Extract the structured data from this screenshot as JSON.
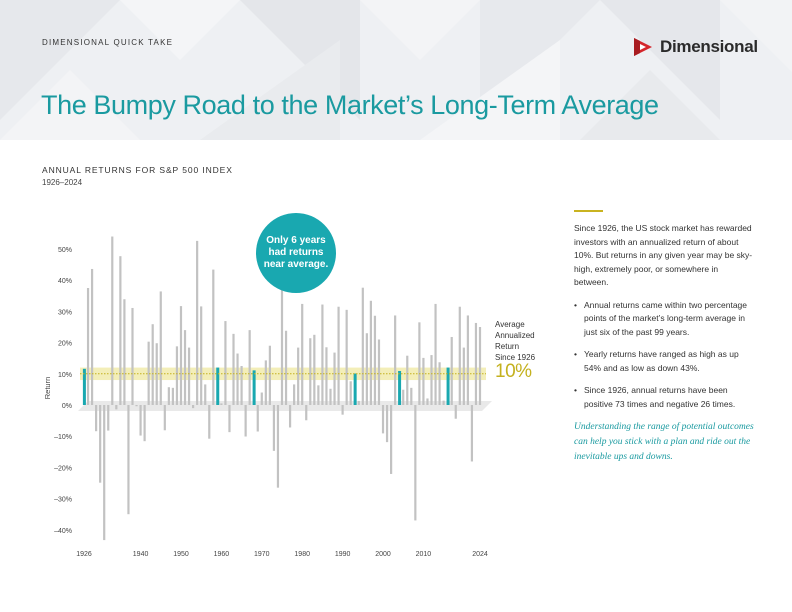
{
  "header": {
    "kicker": "DIMENSIONAL QUICK TAKE",
    "title": "The Bumpy Road to the Market’s Long-Term Average",
    "logo_text": "Dimensional"
  },
  "colors": {
    "teal": "#1a9aa0",
    "gray_bar": "#c2c2c2",
    "near_average_bar": "#19a8b0",
    "average_band": "#f3eeb8",
    "average_line": "#c4b11f"
  },
  "callout": {
    "lines": [
      "Only 6 years",
      "had returns",
      "near average."
    ]
  },
  "average": {
    "label_lines": [
      "Average",
      "Annualized",
      "Return",
      "Since 1926"
    ],
    "value": "10%"
  },
  "right_panel": {
    "intro": "Since 1926, the US stock market has rewarded investors with an annualized return of about 10%. But returns in any given year may be sky-high, extremely poor, or somewhere in between.",
    "bullets": [
      "Annual returns came within two percentage points of the market’s long-term average in just six of the past 99 years.",
      "Yearly returns have ranged as high as up 54% and as low as down 43%.",
      "Since 1926, annual returns have been positive 73 times and negative 26 times."
    ],
    "closing": "Understanding the range of potential outcomes can help you stick with a plan and ride out the inevitable ups and downs."
  },
  "chart_data": {
    "type": "bar",
    "title": "ANNUAL RETURNS FOR S&P 500 INDEX",
    "subtitle": "1926–2024",
    "ylabel": "Return",
    "ylim": [
      -45,
      55
    ],
    "y_ticks": [
      {
        "value": 50,
        "label": "50%"
      },
      {
        "value": 40,
        "label": "40%"
      },
      {
        "value": 30,
        "label": "30%"
      },
      {
        "value": 20,
        "label": "20%"
      },
      {
        "value": 10,
        "label": "10%"
      },
      {
        "value": 0,
        "label": "0%"
      },
      {
        "value": -10,
        "label": "–10%"
      },
      {
        "value": -20,
        "label": "–20%"
      },
      {
        "value": -30,
        "label": "–30%"
      },
      {
        "value": -40,
        "label": "–40%"
      }
    ],
    "x_ticks": [
      {
        "year": 1926,
        "label": "1926"
      },
      {
        "year": 1940,
        "label": "1940"
      },
      {
        "year": 1950,
        "label": "1950"
      },
      {
        "year": 1960,
        "label": "1960"
      },
      {
        "year": 1970,
        "label": "1970"
      },
      {
        "year": 1980,
        "label": "1980"
      },
      {
        "year": 1990,
        "label": "1990"
      },
      {
        "year": 2000,
        "label": "2000"
      },
      {
        "year": 2010,
        "label": "2010"
      },
      {
        "year": 2024,
        "label": "2024"
      }
    ],
    "average_return": 10,
    "average_band": [
      8,
      12
    ],
    "start_year": 1926,
    "values": [
      11.6,
      37.5,
      43.6,
      -8.4,
      -24.9,
      -43.3,
      -8.2,
      54.0,
      -1.4,
      47.7,
      33.9,
      -35.0,
      31.1,
      -0.4,
      -9.8,
      -11.6,
      20.3,
      25.9,
      19.8,
      36.4,
      -8.1,
      5.7,
      5.5,
      18.8,
      31.7,
      24.0,
      18.4,
      -1.0,
      52.6,
      31.6,
      6.6,
      -10.8,
      43.4,
      12.0,
      0.5,
      26.9,
      -8.7,
      22.8,
      16.5,
      12.5,
      -10.1,
      24.0,
      11.1,
      -8.5,
      4.0,
      14.3,
      19.0,
      -14.7,
      -26.5,
      37.2,
      23.8,
      -7.2,
      6.6,
      18.4,
      32.4,
      -4.9,
      21.4,
      22.5,
      6.3,
      32.2,
      18.5,
      5.2,
      16.8,
      31.5,
      -3.1,
      30.5,
      7.6,
      10.1,
      1.3,
      37.6,
      23.0,
      33.4,
      28.6,
      21.0,
      -9.1,
      -11.9,
      -22.1,
      28.7,
      10.9,
      4.9,
      15.8,
      5.5,
      -37.0,
      26.5,
      15.1,
      2.1,
      16.0,
      32.4,
      13.7,
      1.4,
      12.0,
      21.8,
      -4.4,
      31.5,
      18.4,
      28.7,
      -18.1,
      26.3,
      25.0
    ],
    "near_average_years": [
      1926,
      1959,
      1968,
      1993,
      2004,
      2016
    ]
  }
}
